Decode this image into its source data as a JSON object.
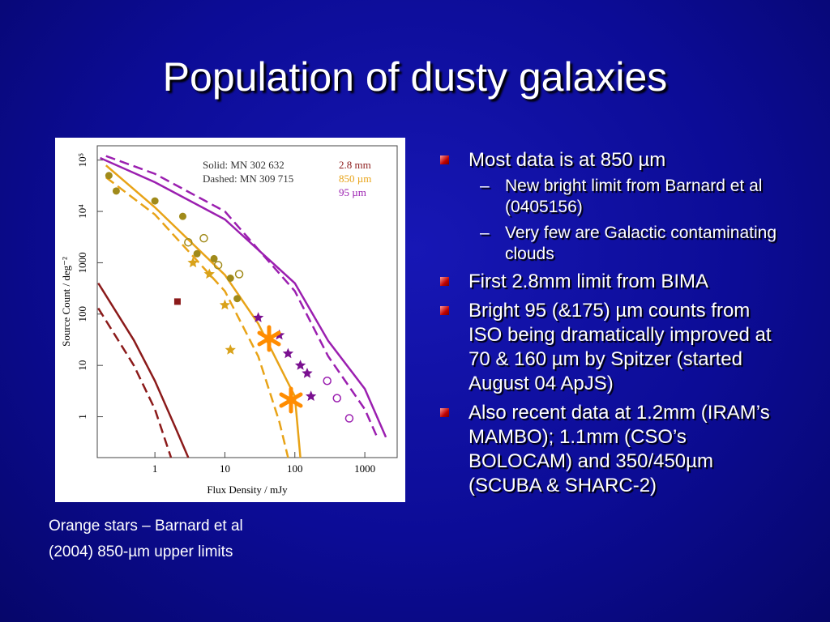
{
  "title": "Population of dusty galaxies",
  "bullets": [
    {
      "text": "Most data is at 850 µm",
      "sub": [
        "New bright limit from Barnard et al (0405156)",
        "Very few are Galactic contaminating clouds"
      ]
    },
    {
      "text": "First 2.8mm limit from BIMA"
    },
    {
      "text": "Bright 95 (&175) µm counts from ISO being dramatically improved at 70 & 160 µm by Spitzer (started August 04 ApJS)"
    },
    {
      "text": "Also recent data at 1.2mm (IRAM’s MAMBO); 1.1mm (CSO’s BOLOCAM) and 350/450µm (SCUBA & SHARC-2)"
    }
  ],
  "caption": "Orange stars – Barnard et al (2004) 850-µm upper limits",
  "chart_data": {
    "type": "line",
    "xlabel": "Flux Density / mJy",
    "ylabel": "Source Count / deg⁻²",
    "xlog": true,
    "ylog": true,
    "xlim": [
      0.15,
      2900
    ],
    "ylim": [
      0.16,
      190000
    ],
    "xticks": [
      1,
      10,
      100,
      1000
    ],
    "yticks": [
      1,
      10,
      100,
      1000,
      {
        "value": 10000,
        "label": "10⁴"
      },
      {
        "value": 100000,
        "label": "10⁵"
      }
    ],
    "legend": [
      "Solid: MN 302 632",
      "Dashed: MN 309 715"
    ],
    "bands": [
      {
        "label": "2.8 mm",
        "color": "#8b1a1a"
      },
      {
        "label": "850 µm",
        "color": "#e8a317"
      },
      {
        "label": "95 µm",
        "color": "#9b1fb0"
      }
    ],
    "series": [
      {
        "kind": "line",
        "style": "solid",
        "color": "#9b1fb0",
        "x": [
          0.165,
          1,
          10,
          100,
          300,
          1000,
          2000
        ],
        "y": [
          110000,
          37000,
          7000,
          400,
          30,
          3.5,
          0.4
        ]
      },
      {
        "kind": "line",
        "style": "dashed",
        "color": "#9b1fb0",
        "x": [
          0.2,
          1,
          10,
          100,
          300,
          1000,
          1500
        ],
        "y": [
          120000,
          54000,
          10000,
          280,
          15,
          1.4,
          0.4
        ]
      },
      {
        "kind": "line",
        "style": "solid",
        "color": "#e8a317",
        "x": [
          0.2,
          1,
          10,
          30,
          100,
          120
        ],
        "y": [
          79000,
          12000,
          580,
          65,
          2.5,
          0.16
        ]
      },
      {
        "kind": "line",
        "style": "dashed",
        "color": "#e8a317",
        "x": [
          0.2,
          1,
          10,
          30,
          60,
          80
        ],
        "y": [
          46000,
          8700,
          280,
          15,
          0.8,
          0.16
        ]
      },
      {
        "kind": "line",
        "style": "solid",
        "color": "#8b1a1a",
        "x": [
          0.155,
          0.5,
          1,
          2,
          3
        ],
        "y": [
          400,
          31,
          5,
          0.58,
          0.16
        ]
      },
      {
        "kind": "line",
        "style": "dashed",
        "color": "#8b1a1a",
        "x": [
          0.155,
          0.5,
          1,
          1.7
        ],
        "y": [
          130,
          10,
          1.4,
          0.16
        ]
      },
      {
        "kind": "scatter",
        "marker": "circle",
        "color": "#a08a1a",
        "x": [
          0.22,
          0.28,
          1,
          2.5,
          4,
          7,
          12,
          15
        ],
        "y": [
          50000,
          25000,
          16000,
          8000,
          1500,
          1200,
          500,
          200
        ]
      },
      {
        "kind": "scatter",
        "marker": "open-circle",
        "color": "#a08a1a",
        "x": [
          3,
          5,
          16,
          8
        ],
        "y": [
          2500,
          3000,
          600,
          900
        ]
      },
      {
        "kind": "scatter",
        "marker": "star",
        "color": "#d9a21a",
        "x": [
          3.5,
          6,
          10,
          12
        ],
        "y": [
          1000,
          600,
          150,
          20
        ]
      },
      {
        "kind": "scatter",
        "marker": "star",
        "color": "#7a1090",
        "x": [
          30,
          60,
          80,
          120,
          150,
          170
        ],
        "y": [
          85,
          39,
          17,
          10,
          7,
          2.5
        ]
      },
      {
        "kind": "scatter",
        "marker": "open-circle",
        "color": "#9b1fb0",
        "x": [
          290,
          400,
          600
        ],
        "y": [
          5,
          2.3,
          0.93
        ]
      },
      {
        "kind": "scatter",
        "marker": "square",
        "color": "#8b1a1a",
        "x": [
          2.1
        ],
        "y": [
          175
        ]
      }
    ]
  }
}
